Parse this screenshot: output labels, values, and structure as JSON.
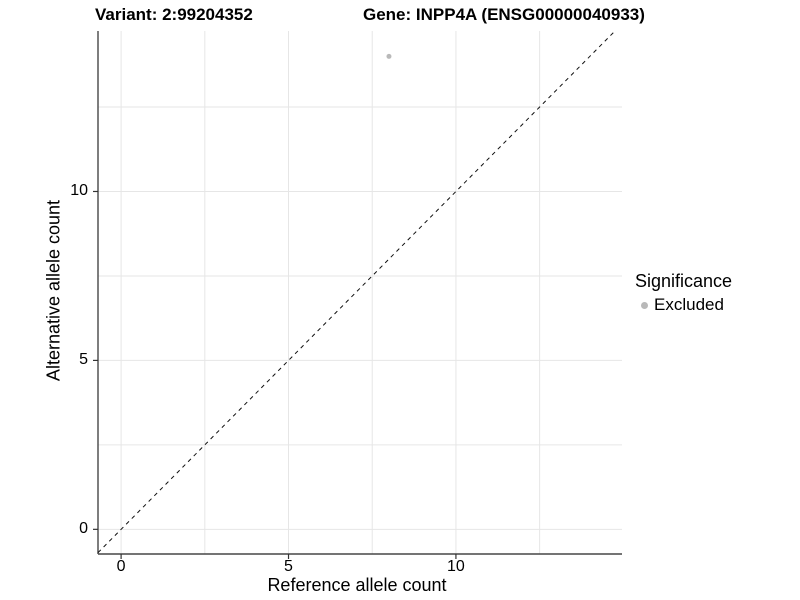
{
  "chart_data": {
    "type": "scatter",
    "title_left": "Variant: 2:99204352",
    "title_right": "Gene: INPP4A (ENSG00000040933)",
    "xlabel": "Reference allele count",
    "ylabel": "Alternative allele count",
    "xlim": [
      -0.69,
      14.96
    ],
    "ylim": [
      -0.73,
      14.75
    ],
    "x_ticks": [
      0,
      5,
      10
    ],
    "y_ticks": [
      0,
      5,
      10
    ],
    "gridline_values": [
      0,
      2.5,
      5,
      7.5,
      10,
      12.5
    ],
    "grid_on": true,
    "identity_line": {
      "style": "dashed",
      "slope": 1,
      "intercept": 0
    },
    "series": [
      {
        "name": "Excluded",
        "points": [
          {
            "x": 8,
            "y": 14
          }
        ],
        "color": "#b9b9b9"
      }
    ],
    "legend": {
      "title": "Significance",
      "position": "right",
      "entries": [
        {
          "label": "Excluded",
          "color": "#b9b9b9"
        }
      ]
    }
  },
  "colors": {
    "background": "#ffffff",
    "gridline": "#e6e6e6",
    "axis_line": "#474747",
    "tick_mark": "#333333",
    "identity_line": "#111111",
    "text": "#000000",
    "point": "#b9b9b9"
  }
}
